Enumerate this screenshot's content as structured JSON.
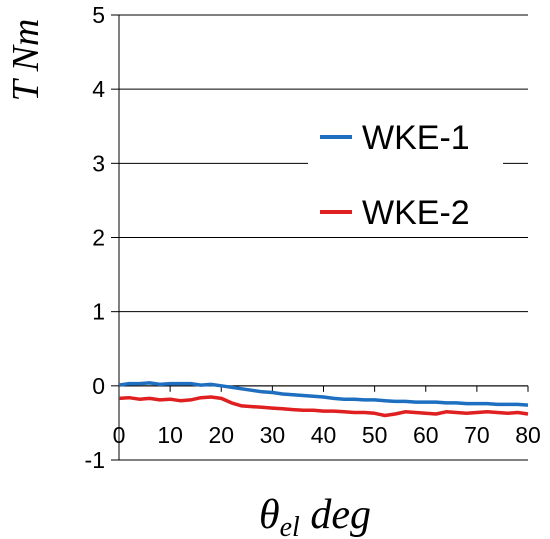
{
  "chart_data": {
    "type": "line",
    "title": "",
    "xlabel": "θel deg",
    "ylabel": "T Nm",
    "xlim": [
      0,
      80
    ],
    "ylim": [
      -1,
      5
    ],
    "x_ticks": [
      "0",
      "10",
      "20",
      "30",
      "40",
      "50",
      "60",
      "70",
      "80"
    ],
    "y_ticks": [
      "-1",
      "0",
      "1",
      "2",
      "3",
      "4",
      "5"
    ],
    "grid": "horizontal",
    "legend_position": "right",
    "series": [
      {
        "name": "WKE-1",
        "color": "#1f6fc0",
        "x": [
          0,
          2,
          4,
          6,
          8,
          10,
          12,
          14,
          16,
          18,
          20,
          22,
          24,
          26,
          28,
          30,
          32,
          34,
          36,
          38,
          40,
          42,
          44,
          46,
          48,
          50,
          52,
          54,
          56,
          58,
          60,
          62,
          64,
          66,
          68,
          70,
          72,
          74,
          76,
          78,
          80
        ],
        "y": [
          0.01,
          0.03,
          0.03,
          0.04,
          0.02,
          0.03,
          0.03,
          0.03,
          0.01,
          0.02,
          0.0,
          -0.02,
          -0.04,
          -0.06,
          -0.08,
          -0.09,
          -0.11,
          -0.12,
          -0.13,
          -0.14,
          -0.15,
          -0.17,
          -0.18,
          -0.18,
          -0.19,
          -0.19,
          -0.2,
          -0.21,
          -0.21,
          -0.22,
          -0.22,
          -0.22,
          -0.23,
          -0.23,
          -0.24,
          -0.24,
          -0.24,
          -0.25,
          -0.25,
          -0.25,
          -0.26
        ]
      },
      {
        "name": "WKE-2",
        "color": "#e02020",
        "x": [
          0,
          2,
          4,
          6,
          8,
          10,
          12,
          14,
          16,
          18,
          20,
          22,
          24,
          26,
          28,
          30,
          32,
          34,
          36,
          38,
          40,
          42,
          44,
          46,
          48,
          50,
          52,
          54,
          56,
          58,
          60,
          62,
          64,
          66,
          68,
          70,
          72,
          74,
          76,
          78,
          80
        ],
        "y": [
          -0.17,
          -0.16,
          -0.18,
          -0.17,
          -0.19,
          -0.18,
          -0.2,
          -0.19,
          -0.16,
          -0.15,
          -0.17,
          -0.23,
          -0.27,
          -0.28,
          -0.29,
          -0.3,
          -0.31,
          -0.32,
          -0.33,
          -0.33,
          -0.34,
          -0.34,
          -0.35,
          -0.36,
          -0.36,
          -0.37,
          -0.4,
          -0.38,
          -0.35,
          -0.36,
          -0.37,
          -0.38,
          -0.35,
          -0.36,
          -0.37,
          -0.36,
          -0.35,
          -0.36,
          -0.37,
          -0.36,
          -0.38
        ]
      }
    ]
  }
}
